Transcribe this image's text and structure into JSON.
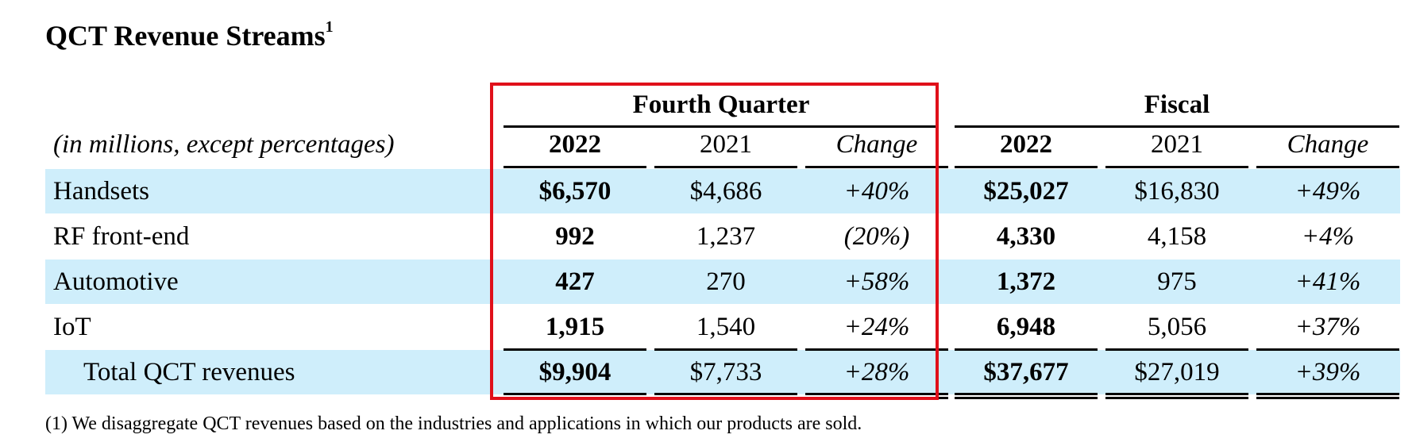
{
  "title": "QCT Revenue Streams",
  "title_footnote_mark": "1",
  "unit_label": "(in millions, except percentages)",
  "groups": [
    {
      "label": "Fourth Quarter"
    },
    {
      "label": "Fiscal"
    }
  ],
  "columns": [
    "2022",
    "2021",
    "Change",
    "2022",
    "2021",
    "Change"
  ],
  "rows": [
    {
      "label": "Handsets",
      "values": [
        "$6,570",
        "$4,686",
        "+40%",
        "$25,027",
        "$16,830",
        "+49%"
      ]
    },
    {
      "label": "RF front-end",
      "values": [
        "992",
        "1,237",
        "(20%)",
        "4,330",
        "4,158",
        "+4%"
      ]
    },
    {
      "label": "Automotive",
      "values": [
        "427",
        "270",
        "+58%",
        "1,372",
        "975",
        "+41%"
      ]
    },
    {
      "label": "IoT",
      "values": [
        "1,915",
        "1,540",
        "+24%",
        "6,948",
        "5,056",
        "+37%"
      ]
    },
    {
      "label": "Total QCT revenues",
      "values": [
        "$9,904",
        "$7,733",
        "+28%",
        "$37,677",
        "$27,019",
        "+39%"
      ]
    }
  ],
  "footnote": "(1)  We disaggregate QCT revenues based on the industries and applications in which our products are sold.",
  "colors": {
    "row_band": "#cfeefb",
    "highlight_box": "#e0101a"
  }
}
